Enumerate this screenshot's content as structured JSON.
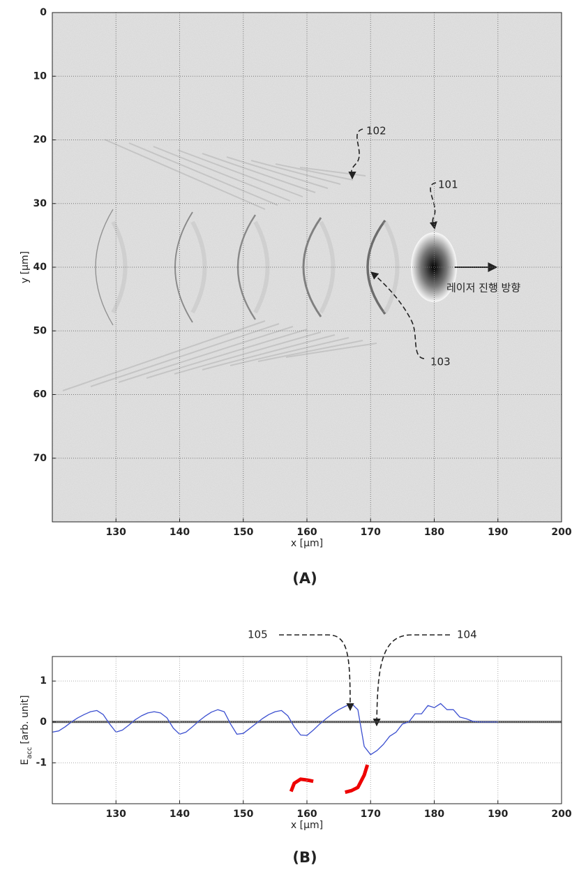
{
  "chart_data": [
    {
      "type": "heatmap",
      "xlabel": "x [µm]",
      "ylabel": "y [µm]",
      "caption": "(A)",
      "xlim": [
        120,
        200
      ],
      "xticks": [
        130,
        140,
        150,
        160,
        170,
        180,
        190,
        200
      ],
      "ylim": [
        0,
        80
      ],
      "yticks": [
        0,
        10,
        20,
        30,
        40,
        50,
        60,
        70
      ],
      "y_inverted": true,
      "grid": true,
      "annotations": [
        "102",
        "101",
        "103",
        "레이저 진행 방향"
      ]
    },
    {
      "type": "line",
      "xlabel": "x [µm]",
      "ylabel": [
        "E",
        "acc",
        "[arb. unit]"
      ],
      "caption": "(B)",
      "xlim": [
        120,
        200
      ],
      "xticks": [
        130,
        140,
        150,
        160,
        170,
        180,
        190,
        200
      ],
      "ylim": [
        -2,
        1.6
      ],
      "yticks": [
        -1,
        0,
        1
      ],
      "grid": true,
      "zero_line": true,
      "annotations": [
        "105",
        "104"
      ],
      "series": [
        {
          "color": "#3b4fd0",
          "x": [
            120,
            121,
            122,
            123,
            124,
            125,
            126,
            127,
            128,
            129,
            130,
            131,
            132,
            133,
            134,
            135,
            136,
            137,
            138,
            139,
            140,
            141,
            142,
            143,
            144,
            145,
            146,
            147,
            148,
            149,
            150,
            151,
            152,
            153,
            154,
            155,
            156,
            157,
            158,
            159,
            160,
            161,
            162,
            163,
            164,
            165,
            166,
            167,
            168,
            169,
            170,
            171,
            172,
            173,
            174,
            175,
            176,
            177,
            178,
            179,
            180,
            181,
            182,
            183,
            184,
            185,
            186,
            187,
            188,
            189,
            190
          ],
          "values": [
            -0.25,
            -0.22,
            -0.12,
            0.0,
            0.1,
            0.18,
            0.25,
            0.28,
            0.18,
            -0.05,
            -0.25,
            -0.2,
            -0.08,
            0.05,
            0.15,
            0.22,
            0.25,
            0.22,
            0.1,
            -0.15,
            -0.3,
            -0.25,
            -0.12,
            0.02,
            0.14,
            0.24,
            0.3,
            0.25,
            -0.05,
            -0.3,
            -0.28,
            -0.16,
            -0.04,
            0.08,
            0.18,
            0.25,
            0.28,
            0.15,
            -0.12,
            -0.32,
            -0.33,
            -0.2,
            -0.05,
            0.08,
            0.2,
            0.3,
            0.38,
            0.45,
            0.3,
            -0.6,
            -0.8,
            -0.7,
            -0.55,
            -0.35,
            -0.25,
            -0.05,
            0.0,
            0.2,
            0.2,
            0.4,
            0.35,
            0.45,
            0.3,
            0.3,
            0.12,
            0.08,
            0.02,
            0.0,
            0.0,
            0.0,
            0.0
          ]
        },
        {
          "color": "#ee0000",
          "x": [
            157.5,
            158,
            159,
            160,
            161,
            163,
            166,
            167,
            168,
            169,
            169.5
          ],
          "values": [
            -1.7,
            -1.5,
            -1.4,
            -1.42,
            -1.45,
            null,
            -1.72,
            -1.68,
            -1.6,
            -1.3,
            -1.05
          ]
        }
      ]
    }
  ]
}
